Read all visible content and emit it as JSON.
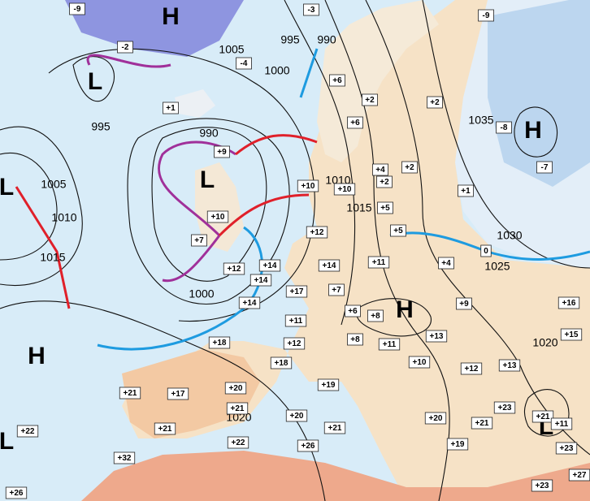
{
  "pressure_centers": [
    "H",
    "L",
    "H",
    "L",
    "L",
    "H",
    "H",
    "L",
    "L"
  ],
  "isobar_labels": [
    "1005",
    "995",
    "990",
    "1000",
    "995",
    "990",
    "1035",
    "1005",
    "1010",
    "1010",
    "1015",
    "1015",
    "1030",
    "1025",
    "1000",
    "1020",
    "1020"
  ],
  "temperature_labels": [
    "-9",
    "-3",
    "-9",
    "-2",
    "-4",
    "+6",
    "+1",
    "+2",
    "+2",
    "+6",
    "-8",
    "+9",
    "+4",
    "+2",
    "+2",
    "-7",
    "+10",
    "+10",
    "+1",
    "+10",
    "+5",
    "+5",
    "+7",
    "+12",
    "0",
    "+4",
    "+11",
    "+14",
    "+14",
    "+12",
    "+14",
    "+17",
    "+7",
    "+9",
    "+16",
    "+14",
    "+6",
    "+8",
    "+11",
    "+15",
    "+13",
    "+12",
    "+8",
    "+11",
    "+18",
    "+18",
    "+10",
    "+12",
    "+13",
    "+21",
    "+17",
    "+20",
    "+19",
    "+21",
    "+23",
    "+21",
    "+11",
    "+20",
    "+21",
    "+20",
    "+21",
    "+21",
    "+22",
    "+19",
    "+26",
    "+22",
    "+23",
    "+32",
    "+27",
    "+26",
    "+23"
  ]
}
